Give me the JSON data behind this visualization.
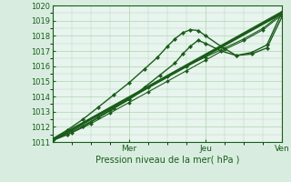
{
  "title": "",
  "xlabel": "Pression niveau de la mer( hPa )",
  "ylabel": "",
  "bg_color": "#d8ede0",
  "plot_bg_color": "#e8f4ee",
  "grid_color": "#b0d4b0",
  "text_color": "#1a5c1a",
  "line_color": "#1a5c1a",
  "ylim": [
    1011,
    1020
  ],
  "xlim": [
    0,
    120
  ],
  "yticks": [
    1011,
    1012,
    1013,
    1014,
    1015,
    1016,
    1017,
    1018,
    1019,
    1020
  ],
  "xtick_positions": [
    0,
    40,
    80,
    120
  ],
  "xtick_labels": [
    "",
    "Mer",
    "Jeu",
    "Ven"
  ],
  "series": [
    {
      "x": [
        0,
        120
      ],
      "y": [
        1011.1,
        1019.5
      ],
      "marker": null,
      "lw": 1.8,
      "ms": 0
    },
    {
      "x": [
        0,
        120
      ],
      "y": [
        1011.15,
        1019.6
      ],
      "marker": null,
      "lw": 1.2,
      "ms": 0
    },
    {
      "x": [
        0,
        10,
        20,
        30,
        40,
        50,
        60,
        70,
        80,
        90,
        100,
        110,
        120
      ],
      "y": [
        1011.1,
        1011.6,
        1012.2,
        1012.9,
        1013.6,
        1014.3,
        1015.0,
        1015.7,
        1016.4,
        1017.1,
        1017.7,
        1018.4,
        1019.4
      ],
      "marker": "D",
      "lw": 0.8,
      "ms": 2.0
    },
    {
      "x": [
        0,
        10,
        20,
        30,
        40,
        50,
        60,
        70,
        80,
        90,
        100,
        110,
        120
      ],
      "y": [
        1011.15,
        1011.7,
        1012.35,
        1013.1,
        1013.8,
        1014.6,
        1015.3,
        1016.0,
        1016.6,
        1017.2,
        1017.8,
        1018.5,
        1019.5
      ],
      "marker": "D",
      "lw": 0.8,
      "ms": 2.0
    },
    {
      "x": [
        0,
        8,
        16,
        24,
        32,
        40,
        48,
        56,
        64,
        68,
        72,
        76,
        80,
        88,
        96,
        104,
        112,
        120
      ],
      "y": [
        1011.1,
        1011.5,
        1012.0,
        1012.6,
        1013.2,
        1013.8,
        1014.6,
        1015.4,
        1016.2,
        1016.8,
        1017.3,
        1017.7,
        1017.5,
        1017.0,
        1016.7,
        1016.8,
        1017.2,
        1019.3
      ],
      "marker": "D",
      "lw": 1.0,
      "ms": 2.2
    },
    {
      "x": [
        0,
        8,
        16,
        24,
        32,
        40,
        48,
        55,
        60,
        64,
        68,
        72,
        76,
        80,
        88,
        96,
        104,
        112,
        120
      ],
      "y": [
        1011.2,
        1011.8,
        1012.5,
        1013.3,
        1014.1,
        1014.9,
        1015.8,
        1016.6,
        1017.3,
        1017.8,
        1018.2,
        1018.4,
        1018.35,
        1018.0,
        1017.3,
        1016.7,
        1016.9,
        1017.4,
        1019.6
      ],
      "marker": "D",
      "lw": 1.0,
      "ms": 2.2
    }
  ]
}
